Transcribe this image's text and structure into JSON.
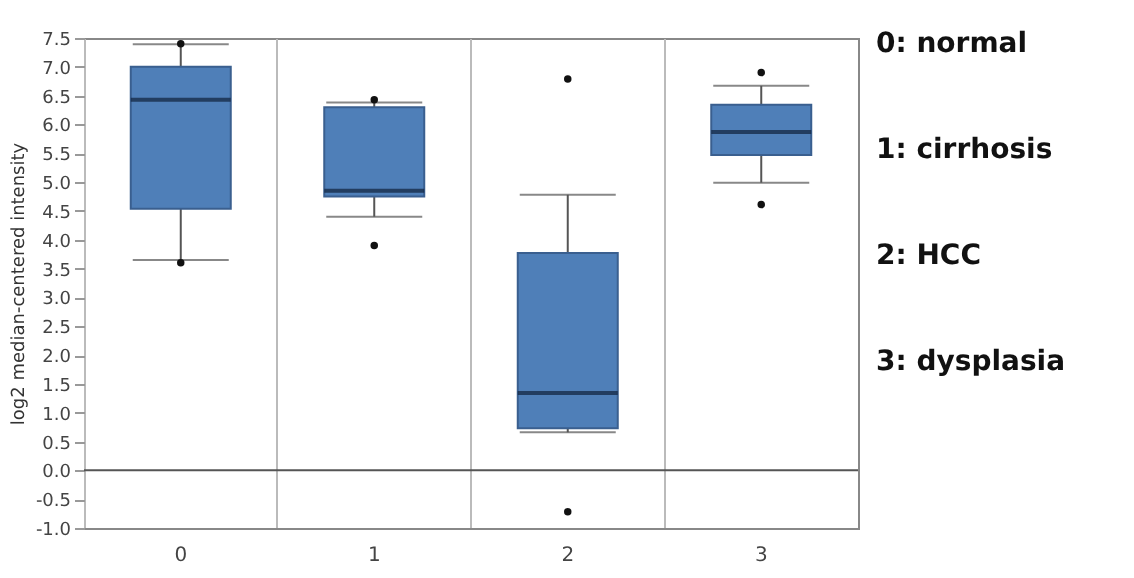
{
  "chart_data": {
    "type": "box",
    "ylabel": "log2 median-centered intensity",
    "categories": [
      "0",
      "1",
      "2",
      "3"
    ],
    "color": "#4f7fb8",
    "boxes": [
      {
        "low": 3.65,
        "q1": 4.54,
        "median": 6.43,
        "q3": 7.0,
        "high": 7.39,
        "outliers": [
          7.4,
          3.6
        ]
      },
      {
        "low": 4.4,
        "q1": 4.75,
        "median": 4.85,
        "q3": 6.3,
        "high": 6.38,
        "outliers": [
          6.43,
          3.9
        ]
      },
      {
        "low": 0.66,
        "q1": 0.73,
        "median": 1.34,
        "q3": 3.77,
        "high": 4.78,
        "outliers": [
          6.79,
          -0.72
        ]
      },
      {
        "low": 4.99,
        "q1": 5.47,
        "median": 5.87,
        "q3": 6.34,
        "high": 6.67,
        "outliers": [
          6.9,
          4.61
        ]
      }
    ],
    "ylim": [
      -1.0,
      7.5
    ],
    "yticks": [
      {
        "value": -1,
        "label": "-1.0"
      },
      -0.5,
      {
        "value": 0,
        "label": "0.0"
      },
      0.5,
      {
        "value": 1,
        "label": "1.0"
      },
      1.5,
      {
        "value": 2,
        "label": "2.0"
      },
      2.5,
      {
        "value": 3,
        "label": "3.0"
      },
      3.5,
      {
        "value": 4,
        "label": "4.0"
      },
      4.5,
      {
        "value": 5,
        "label": "5.0"
      },
      5.5,
      {
        "value": 6,
        "label": "6.0"
      },
      6.5,
      {
        "value": 7,
        "label": "7.0"
      },
      7.5
    ],
    "grid": "x",
    "ref_lines": [
      {
        "axis": "y",
        "value": 0,
        "color": "#555555"
      }
    ],
    "annotations": [
      "0: normal",
      "1: cirrhosis",
      "2: HCC",
      "3: dysplasia"
    ]
  }
}
